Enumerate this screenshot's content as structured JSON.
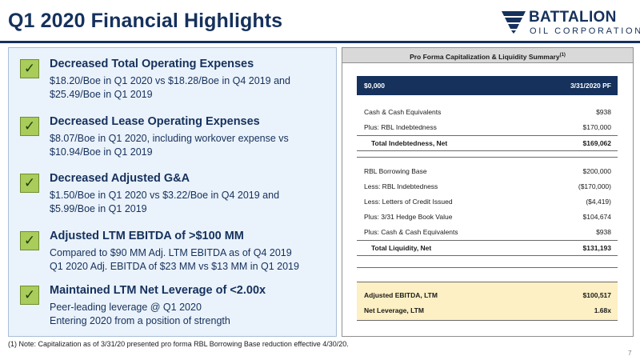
{
  "page": {
    "title": "Q1 2020 Financial Highlights",
    "number": "7"
  },
  "logo": {
    "icon": "battalion-logo-icon",
    "name": "BATTALION",
    "subtitle": "OIL CORPORATION"
  },
  "highlights": [
    {
      "icon": "checkmark-icon",
      "title": "Decreased Total Operating Expenses",
      "lines": [
        "$18.20/Boe in Q1 2020 vs $18.28/Boe in Q4 2019 and",
        "$25.49/Boe in Q1 2019"
      ]
    },
    {
      "icon": "checkmark-icon",
      "title": "Decreased Lease Operating Expenses",
      "lines": [
        "$8.07/Boe in Q1 2020, including workover expense vs",
        "$10.94/Boe in Q1 2019"
      ]
    },
    {
      "icon": "checkmark-icon",
      "title": "Decreased Adjusted G&A",
      "lines": [
        "$1.50/Boe in Q1 2020 vs $3.22/Boe in Q4 2019 and",
        "$5.99/Boe in Q1 2019"
      ]
    },
    {
      "icon": "checkmark-icon",
      "title": "Adjusted LTM EBITDA of >$100 MM",
      "lines": [
        "Compared to $90 MM Adj. LTM EBITDA as of Q4 2019",
        "Q1 2020 Adj. EBITDA of $23 MM vs $13 MM in Q1 2019"
      ]
    },
    {
      "icon": "checkmark-icon",
      "title": "Maintained LTM Net Leverage of <2.00x",
      "lines": [
        "Peer-leading leverage @ Q1 2020",
        "Entering 2020 from a position of strength"
      ]
    }
  ],
  "summary_table": {
    "heading": "Pro Forma Capitalization & Liquidity Summary",
    "heading_note": "(1)",
    "columns": [
      "$0,000",
      "3/31/2020 PF"
    ],
    "capitalization": [
      {
        "label": "Cash & Cash Equivalents",
        "value": "$938"
      },
      {
        "label": "Plus: RBL Indebtedness",
        "value": "$170,000"
      }
    ],
    "capitalization_total": {
      "label": "Total Indebtedness, Net",
      "value": "$169,062"
    },
    "liquidity": [
      {
        "label": "RBL Borrowing Base",
        "value": "$200,000"
      },
      {
        "label": "Less: RBL Indebtedness",
        "value": "($170,000)"
      },
      {
        "label": "Less: Letters of Credit Issued",
        "value": "($4,419)"
      },
      {
        "label": "Plus: 3/31 Hedge Book Value",
        "value": "$104,674"
      },
      {
        "label": "Plus: Cash & Cash Equivalents",
        "value": "$938"
      }
    ],
    "liquidity_total": {
      "label": "Total Liquidity, Net",
      "value": "$131,193"
    },
    "metrics": [
      {
        "label": "Adjusted EBITDA, LTM",
        "value": "$100,517"
      },
      {
        "label": "Net Leverage, LTM",
        "value": "1.68x"
      }
    ]
  },
  "footnote": "(1) Note: Capitalization as of 3/31/20 presented pro forma RBL Borrowing Base reduction effective 4/30/20.",
  "colors": {
    "brand_navy": "#15315c",
    "check_green": "#a9cc5a",
    "panel_blue": "#eaf2fb",
    "summary_yellow": "#fdf0c4"
  }
}
